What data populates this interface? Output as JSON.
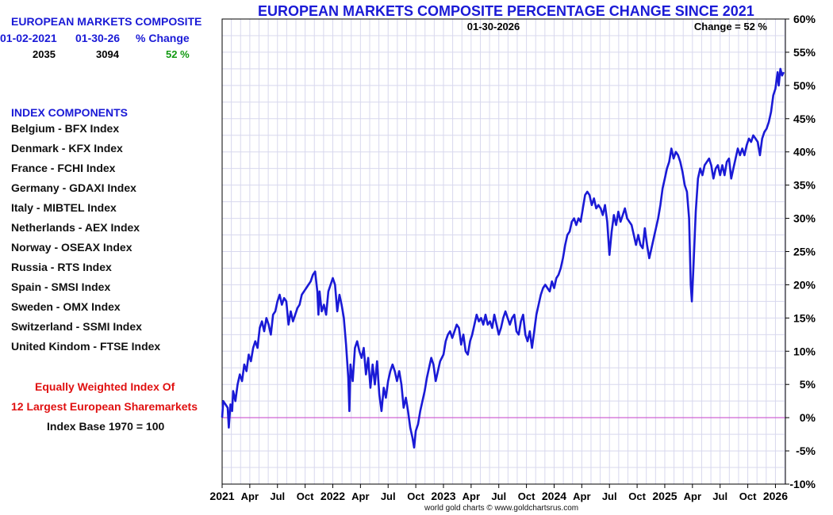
{
  "header": {
    "title": "EUROPEAN MARKETS COMPOSITE PERCENTAGE CHANGE SINCE 2021",
    "date_label": "01-30-2026",
    "change_label": "Change = 52 %"
  },
  "summary": {
    "title": "EUROPEAN MARKETS COMPOSITE",
    "col1_label": "01-02-2021",
    "col2_label": "01-30-26",
    "col3_label": "% Change",
    "col1_value": "2035",
    "col2_value": "3094",
    "col3_value": "52 %"
  },
  "components": {
    "title": "INDEX COMPONENTS",
    "items": [
      "Belgium - BFX Index",
      "Denmark - KFX Index",
      "France - FCHI Index",
      "Germany - GDAXI Index",
      "Italy - MIBTEL Index",
      "Netherlands - AEX Index",
      "Norway - OSEAX Index",
      "Russia - RTS Index",
      "Spain - SMSI Index",
      "Sweden - OMX Index",
      "Switzerland - SSMI Index",
      "United Kindom - FTSE Index"
    ]
  },
  "notes": {
    "line1": "Equally Weighted Index Of",
    "line2": "12 Largest European Sharemarkets",
    "line3": "Index Base 1970 = 100"
  },
  "credit": "world gold charts © www.goldchartsrus.com",
  "colors": {
    "line": "#1a1ad6",
    "title": "#1a1ad6",
    "grid": "#d8d8ee",
    "zero_line": "#cc44cc",
    "change": "#119911",
    "note": "#e01010"
  },
  "chart_data": {
    "type": "line",
    "title": "EUROPEAN MARKETS COMPOSITE PERCENTAGE CHANGE SINCE 2021",
    "xlabel": "",
    "ylabel": "",
    "ylim": [
      -10,
      60
    ],
    "xlim": [
      2021.0,
      2026.09
    ],
    "grid": true,
    "y_axis_side": "right",
    "y_ticks": [
      -10,
      -5,
      0,
      5,
      10,
      15,
      20,
      25,
      30,
      35,
      40,
      45,
      50,
      55,
      60
    ],
    "y_tick_labels": [
      "-10%",
      "-5%",
      "0%",
      "5%",
      "10%",
      "15%",
      "20%",
      "25%",
      "30%",
      "35%",
      "40%",
      "45%",
      "50%",
      "55%",
      "60%"
    ],
    "x_ticks": [
      {
        "x": 2021.0,
        "label": "2021",
        "bold": true
      },
      {
        "x": 2021.25,
        "label": "Apr"
      },
      {
        "x": 2021.5,
        "label": "Jul"
      },
      {
        "x": 2021.75,
        "label": "Oct"
      },
      {
        "x": 2022.0,
        "label": "2022",
        "bold": true
      },
      {
        "x": 2022.25,
        "label": "Apr"
      },
      {
        "x": 2022.5,
        "label": "Jul"
      },
      {
        "x": 2022.75,
        "label": "Oct"
      },
      {
        "x": 2023.0,
        "label": "2023",
        "bold": true
      },
      {
        "x": 2023.25,
        "label": "Apr"
      },
      {
        "x": 2023.5,
        "label": "Jul"
      },
      {
        "x": 2023.75,
        "label": "Oct"
      },
      {
        "x": 2024.0,
        "label": "2024",
        "bold": true
      },
      {
        "x": 2024.25,
        "label": "Apr"
      },
      {
        "x": 2024.5,
        "label": "Jul"
      },
      {
        "x": 2024.75,
        "label": "Oct"
      },
      {
        "x": 2025.0,
        "label": "2025",
        "bold": true
      },
      {
        "x": 2025.25,
        "label": "Apr"
      },
      {
        "x": 2025.5,
        "label": "Jul"
      },
      {
        "x": 2025.75,
        "label": "Oct"
      },
      {
        "x": 2026.0,
        "label": "2026",
        "bold": true
      }
    ],
    "reference_lines": [
      {
        "y": 0
      }
    ],
    "series": [
      {
        "points": [
          [
            2021.0,
            0
          ],
          [
            2021.01,
            2.5
          ],
          [
            2021.03,
            2
          ],
          [
            2021.05,
            1.5
          ],
          [
            2021.06,
            -1.5
          ],
          [
            2021.075,
            2
          ],
          [
            2021.09,
            1
          ],
          [
            2021.1,
            4
          ],
          [
            2021.12,
            2.5
          ],
          [
            2021.14,
            5
          ],
          [
            2021.16,
            6.5
          ],
          [
            2021.18,
            5.5
          ],
          [
            2021.2,
            8
          ],
          [
            2021.22,
            7
          ],
          [
            2021.24,
            9.5
          ],
          [
            2021.26,
            8.5
          ],
          [
            2021.28,
            10.5
          ],
          [
            2021.3,
            11.5
          ],
          [
            2021.32,
            10.5
          ],
          [
            2021.34,
            13.5
          ],
          [
            2021.36,
            14.5
          ],
          [
            2021.38,
            13
          ],
          [
            2021.4,
            15
          ],
          [
            2021.42,
            14
          ],
          [
            2021.44,
            12.5
          ],
          [
            2021.46,
            15.5
          ],
          [
            2021.48,
            16
          ],
          [
            2021.5,
            17.5
          ],
          [
            2021.52,
            18.5
          ],
          [
            2021.54,
            17
          ],
          [
            2021.56,
            18
          ],
          [
            2021.58,
            17.5
          ],
          [
            2021.6,
            14
          ],
          [
            2021.62,
            16
          ],
          [
            2021.64,
            14.5
          ],
          [
            2021.66,
            15.5
          ],
          [
            2021.68,
            16.5
          ],
          [
            2021.7,
            17
          ],
          [
            2021.72,
            18.5
          ],
          [
            2021.74,
            19
          ],
          [
            2021.76,
            19.5
          ],
          [
            2021.78,
            20
          ],
          [
            2021.8,
            20.5
          ],
          [
            2021.82,
            21.5
          ],
          [
            2021.84,
            22
          ],
          [
            2021.86,
            19
          ],
          [
            2021.87,
            15.5
          ],
          [
            2021.88,
            19
          ],
          [
            2021.9,
            16
          ],
          [
            2021.92,
            17
          ],
          [
            2021.94,
            15.5
          ],
          [
            2021.96,
            19
          ],
          [
            2021.98,
            20
          ],
          [
            2022.0,
            21
          ],
          [
            2022.02,
            20
          ],
          [
            2022.04,
            16
          ],
          [
            2022.06,
            18.5
          ],
          [
            2022.08,
            17
          ],
          [
            2022.1,
            15
          ],
          [
            2022.12,
            11
          ],
          [
            2022.14,
            6
          ],
          [
            2022.15,
            1
          ],
          [
            2022.16,
            8
          ],
          [
            2022.18,
            5.5
          ],
          [
            2022.2,
            10.5
          ],
          [
            2022.22,
            11.5
          ],
          [
            2022.24,
            10
          ],
          [
            2022.26,
            9
          ],
          [
            2022.28,
            10.5
          ],
          [
            2022.3,
            6.5
          ],
          [
            2022.32,
            9
          ],
          [
            2022.34,
            4.5
          ],
          [
            2022.36,
            8
          ],
          [
            2022.38,
            5
          ],
          [
            2022.4,
            8.5
          ],
          [
            2022.42,
            3.5
          ],
          [
            2022.44,
            1
          ],
          [
            2022.46,
            4.5
          ],
          [
            2022.48,
            3
          ],
          [
            2022.5,
            5.5
          ],
          [
            2022.52,
            7
          ],
          [
            2022.54,
            8
          ],
          [
            2022.56,
            7
          ],
          [
            2022.58,
            5.5
          ],
          [
            2022.6,
            7
          ],
          [
            2022.62,
            5
          ],
          [
            2022.64,
            1.5
          ],
          [
            2022.66,
            3
          ],
          [
            2022.68,
            1
          ],
          [
            2022.7,
            -1.5
          ],
          [
            2022.72,
            -3
          ],
          [
            2022.735,
            -4.5
          ],
          [
            2022.75,
            -2
          ],
          [
            2022.77,
            -1
          ],
          [
            2022.79,
            1
          ],
          [
            2022.81,
            2.5
          ],
          [
            2022.83,
            4
          ],
          [
            2022.85,
            6
          ],
          [
            2022.87,
            7.5
          ],
          [
            2022.89,
            9
          ],
          [
            2022.91,
            8
          ],
          [
            2022.93,
            5.5
          ],
          [
            2022.95,
            7
          ],
          [
            2022.97,
            8.5
          ],
          [
            2023.0,
            9.5
          ],
          [
            2023.02,
            11.5
          ],
          [
            2023.04,
            12.5
          ],
          [
            2023.06,
            13
          ],
          [
            2023.08,
            12
          ],
          [
            2023.1,
            13
          ],
          [
            2023.12,
            14
          ],
          [
            2023.14,
            13.5
          ],
          [
            2023.16,
            11
          ],
          [
            2023.18,
            12.5
          ],
          [
            2023.2,
            10
          ],
          [
            2023.22,
            9.5
          ],
          [
            2023.24,
            11.5
          ],
          [
            2023.26,
            12.5
          ],
          [
            2023.28,
            14
          ],
          [
            2023.3,
            15.5
          ],
          [
            2023.32,
            14.5
          ],
          [
            2023.34,
            15
          ],
          [
            2023.36,
            14
          ],
          [
            2023.38,
            15.5
          ],
          [
            2023.4,
            14
          ],
          [
            2023.42,
            14.5
          ],
          [
            2023.44,
            13.5
          ],
          [
            2023.46,
            15.5
          ],
          [
            2023.48,
            14
          ],
          [
            2023.5,
            12.5
          ],
          [
            2023.52,
            13.5
          ],
          [
            2023.54,
            15
          ],
          [
            2023.56,
            16
          ],
          [
            2023.58,
            15
          ],
          [
            2023.6,
            14
          ],
          [
            2023.62,
            15
          ],
          [
            2023.64,
            15.5
          ],
          [
            2023.66,
            13
          ],
          [
            2023.68,
            12.5
          ],
          [
            2023.7,
            14.5
          ],
          [
            2023.72,
            15.5
          ],
          [
            2023.74,
            12.5
          ],
          [
            2023.76,
            11.5
          ],
          [
            2023.78,
            13
          ],
          [
            2023.8,
            10.5
          ],
          [
            2023.82,
            13
          ],
          [
            2023.84,
            15.5
          ],
          [
            2023.86,
            17
          ],
          [
            2023.88,
            18.5
          ],
          [
            2023.9,
            19.5
          ],
          [
            2023.92,
            20
          ],
          [
            2023.94,
            19.5
          ],
          [
            2023.96,
            19
          ],
          [
            2023.98,
            20.5
          ],
          [
            2024.0,
            19.5
          ],
          [
            2024.02,
            21
          ],
          [
            2024.04,
            21.5
          ],
          [
            2024.06,
            22.5
          ],
          [
            2024.08,
            24
          ],
          [
            2024.1,
            26
          ],
          [
            2024.12,
            27.5
          ],
          [
            2024.14,
            28
          ],
          [
            2024.16,
            29.5
          ],
          [
            2024.18,
            30
          ],
          [
            2024.2,
            29
          ],
          [
            2024.22,
            30
          ],
          [
            2024.24,
            29.5
          ],
          [
            2024.26,
            31.5
          ],
          [
            2024.28,
            33.5
          ],
          [
            2024.3,
            34
          ],
          [
            2024.32,
            33.5
          ],
          [
            2024.34,
            32
          ],
          [
            2024.36,
            33
          ],
          [
            2024.38,
            31.5
          ],
          [
            2024.4,
            32
          ],
          [
            2024.42,
            31.5
          ],
          [
            2024.44,
            30.5
          ],
          [
            2024.46,
            32
          ],
          [
            2024.48,
            29.5
          ],
          [
            2024.5,
            24.5
          ],
          [
            2024.52,
            28
          ],
          [
            2024.54,
            30.5
          ],
          [
            2024.56,
            29
          ],
          [
            2024.58,
            31
          ],
          [
            2024.6,
            29.5
          ],
          [
            2024.62,
            30.5
          ],
          [
            2024.64,
            31.5
          ],
          [
            2024.66,
            30
          ],
          [
            2024.68,
            29.5
          ],
          [
            2024.7,
            29
          ],
          [
            2024.72,
            27.5
          ],
          [
            2024.74,
            26
          ],
          [
            2024.76,
            27.5
          ],
          [
            2024.78,
            26
          ],
          [
            2024.8,
            25.5
          ],
          [
            2024.82,
            28.5
          ],
          [
            2024.84,
            26
          ],
          [
            2024.86,
            24
          ],
          [
            2024.88,
            25.5
          ],
          [
            2024.9,
            27
          ],
          [
            2024.92,
            28.5
          ],
          [
            2024.94,
            30
          ],
          [
            2024.96,
            32
          ],
          [
            2024.98,
            34.5
          ],
          [
            2025.0,
            36
          ],
          [
            2025.02,
            37.5
          ],
          [
            2025.04,
            38.5
          ],
          [
            2025.06,
            40.5
          ],
          [
            2025.08,
            39
          ],
          [
            2025.1,
            40
          ],
          [
            2025.12,
            39.5
          ],
          [
            2025.14,
            38.5
          ],
          [
            2025.16,
            37
          ],
          [
            2025.18,
            35
          ],
          [
            2025.2,
            34
          ],
          [
            2025.22,
            30
          ],
          [
            2025.235,
            20
          ],
          [
            2025.245,
            17.5
          ],
          [
            2025.26,
            23
          ],
          [
            2025.28,
            31
          ],
          [
            2025.3,
            36
          ],
          [
            2025.32,
            37.5
          ],
          [
            2025.34,
            36.5
          ],
          [
            2025.36,
            38
          ],
          [
            2025.38,
            38.5
          ],
          [
            2025.4,
            39
          ],
          [
            2025.42,
            38
          ],
          [
            2025.44,
            36
          ],
          [
            2025.46,
            37.5
          ],
          [
            2025.48,
            38
          ],
          [
            2025.5,
            36.5
          ],
          [
            2025.52,
            38
          ],
          [
            2025.54,
            36.5
          ],
          [
            2025.56,
            38.5
          ],
          [
            2025.58,
            39
          ],
          [
            2025.6,
            36
          ],
          [
            2025.62,
            37.5
          ],
          [
            2025.64,
            39
          ],
          [
            2025.66,
            40.5
          ],
          [
            2025.68,
            39.5
          ],
          [
            2025.7,
            40.5
          ],
          [
            2025.72,
            39.5
          ],
          [
            2025.74,
            41
          ],
          [
            2025.76,
            42
          ],
          [
            2025.78,
            41.5
          ],
          [
            2025.8,
            42.5
          ],
          [
            2025.82,
            42
          ],
          [
            2025.84,
            41.5
          ],
          [
            2025.86,
            39.5
          ],
          [
            2025.88,
            42
          ],
          [
            2025.9,
            43
          ],
          [
            2025.92,
            43.5
          ],
          [
            2025.94,
            44.5
          ],
          [
            2025.96,
            46
          ],
          [
            2025.98,
            48.5
          ],
          [
            2026.0,
            49.5
          ],
          [
            2026.02,
            52
          ],
          [
            2026.03,
            50
          ],
          [
            2026.045,
            52.5
          ],
          [
            2026.06,
            51.5
          ],
          [
            2026.075,
            52
          ]
        ]
      }
    ]
  }
}
